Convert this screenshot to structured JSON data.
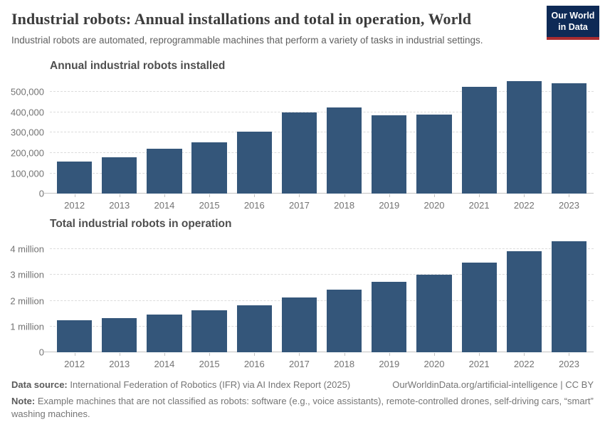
{
  "header": {
    "title": "Industrial robots: Annual installations and total in operation, World",
    "subtitle": "Industrial robots are automated, reprogrammable machines that perform a variety of tasks in industrial settings.",
    "logo": {
      "line1": "Our World",
      "line2": "in Data",
      "bg": "#0e2a56",
      "accent": "#aa2c30",
      "text": "#ffffff"
    }
  },
  "colors": {
    "bar": "#34567a",
    "gridline": "#dcdcdc",
    "axis_line": "#c2c2c2",
    "tick_text": "#737373",
    "chart_title_text": "#4e4e4e",
    "title_text": "#3c3c3c",
    "subtitle_text": "#5f5f5f",
    "footer_text": "#757575"
  },
  "chart_data": [
    {
      "type": "bar",
      "title": "Annual industrial robots installed",
      "categories": [
        "2012",
        "2013",
        "2014",
        "2015",
        "2016",
        "2017",
        "2018",
        "2019",
        "2020",
        "2021",
        "2022",
        "2023"
      ],
      "values": [
        159000,
        178000,
        221000,
        254000,
        304000,
        400000,
        423000,
        387000,
        390000,
        526000,
        553000,
        541000
      ],
      "xlabel": "",
      "ylabel": "",
      "ylim": [
        0,
        566000
      ],
      "grid": true,
      "legend": "none",
      "yticks": [
        {
          "v": 0,
          "label": "0"
        },
        {
          "v": 100000,
          "label": "100,000"
        },
        {
          "v": 200000,
          "label": "200,000"
        },
        {
          "v": 300000,
          "label": "300,000"
        },
        {
          "v": 400000,
          "label": "400,000"
        },
        {
          "v": 500000,
          "label": "500,000"
        }
      ]
    },
    {
      "type": "bar",
      "title": "Total industrial robots in operation",
      "categories": [
        "2012",
        "2013",
        "2014",
        "2015",
        "2016",
        "2017",
        "2018",
        "2019",
        "2020",
        "2021",
        "2022",
        "2023"
      ],
      "values": [
        1235000,
        1332000,
        1472000,
        1632000,
        1828000,
        2125000,
        2440000,
        2728000,
        3015000,
        3479000,
        3904000,
        4282000
      ],
      "xlabel": "",
      "ylabel": "",
      "ylim": [
        0,
        4480000
      ],
      "grid": true,
      "legend": "none",
      "yticks": [
        {
          "v": 0,
          "label": "0"
        },
        {
          "v": 1000000,
          "label": "1 million"
        },
        {
          "v": 2000000,
          "label": "2 million"
        },
        {
          "v": 3000000,
          "label": "3 million"
        },
        {
          "v": 4000000,
          "label": "4 million"
        }
      ]
    }
  ],
  "footer": {
    "datasource_label": "Data source:",
    "datasource_text": " International Federation of Robotics (IFR) via AI Index Report (2025)",
    "link_text": "OurWorldinData.org/artificial-intelligence | CC BY",
    "note_label": "Note:",
    "note_text": " Example machines that are not classified as robots: software (e.g., voice assistants), remote-controlled drones, self-driving cars, “smart” washing machines."
  }
}
